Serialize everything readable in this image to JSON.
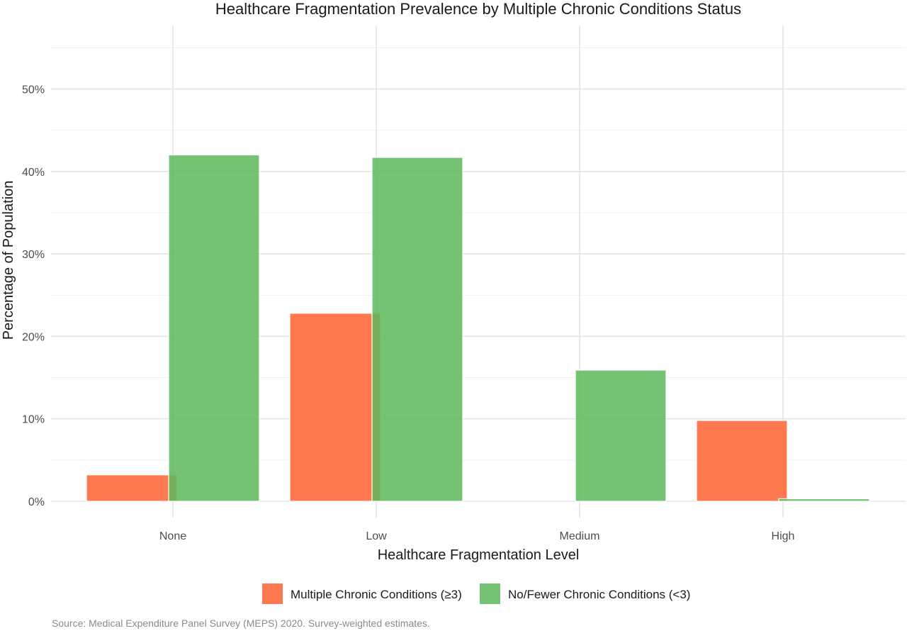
{
  "chart_data": {
    "type": "bar",
    "title": "Healthcare Fragmentation Prevalence by Multiple Chronic Conditions Status",
    "xlabel": "Healthcare Fragmentation Level",
    "ylabel": "Percentage of Population",
    "categories": [
      "None",
      "Low",
      "Medium",
      "High"
    ],
    "series": [
      {
        "name": "Multiple Chronic Conditions (≥3)",
        "color": "#ff6a3d",
        "values": [
          3.2,
          22.8,
          0,
          9.8
        ]
      },
      {
        "name": "No/Fewer Chronic Conditions (<3)",
        "color": "#5cb85c",
        "values": [
          42.0,
          41.7,
          15.9,
          0.3
        ]
      }
    ],
    "ylim": [
      0,
      55
    ],
    "yticks": [
      0,
      10,
      20,
      30,
      40,
      50
    ],
    "ytick_labels": [
      "0%",
      "10%",
      "20%",
      "30%",
      "40%",
      "50%"
    ],
    "grid": true,
    "legend_position": "bottom",
    "caption": "Source: Medical Expenditure Panel Survey (MEPS) 2020. Survey-weighted estimates."
  }
}
